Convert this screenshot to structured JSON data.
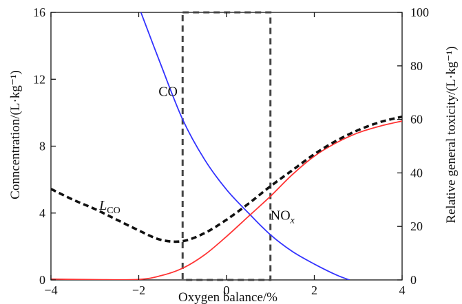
{
  "chart_data": {
    "type": "line",
    "title": "",
    "xlabel": "Oxygen balance/%",
    "ylabel_left": "Conncentration/(L·kg⁻¹)",
    "ylabel_right": "Relative general toxicity/(L·kg⁻¹)",
    "xlim": [
      -4,
      4
    ],
    "ylim_left": [
      0,
      16
    ],
    "ylim_right": [
      0,
      100
    ],
    "xticks": [
      -4,
      -2,
      0,
      2,
      4
    ],
    "xtick_labels": [
      "−4",
      "−2",
      "0",
      "2",
      "4"
    ],
    "yticks_left": [
      0,
      4,
      8,
      12,
      16
    ],
    "yticks_left_labels": [
      "0",
      "4",
      "8",
      "12",
      "16"
    ],
    "yticks_right": [
      0,
      20,
      40,
      60,
      80,
      100
    ],
    "yticks_right_labels": [
      "0",
      "20",
      "40",
      "60",
      "80",
      "100"
    ],
    "grid": false,
    "series": [
      {
        "name": "CO",
        "axis": "left",
        "color": "#3333ff",
        "style": "solid",
        "x": [
          -1.95,
          -1.5,
          -1.0,
          -0.5,
          0.0,
          0.5,
          1.0,
          1.5,
          2.0,
          2.5,
          2.8
        ],
        "values": [
          16.0,
          12.9,
          9.6,
          7.2,
          5.4,
          4.0,
          2.7,
          1.7,
          0.95,
          0.3,
          0.0
        ]
      },
      {
        "name": "NOx",
        "axis": "left",
        "color": "#ff3333",
        "style": "solid",
        "x": [
          -4.0,
          -3.0,
          -2.0,
          -1.5,
          -1.0,
          -0.5,
          0.0,
          0.5,
          1.0,
          1.5,
          2.0,
          2.5,
          3.0,
          3.5,
          4.0
        ],
        "values": [
          0.05,
          0.02,
          0.03,
          0.25,
          0.7,
          1.5,
          2.6,
          3.8,
          5.0,
          6.3,
          7.4,
          8.2,
          8.8,
          9.2,
          9.5
        ]
      },
      {
        "name": "LCO",
        "axis": "right",
        "color": "#111111",
        "style": "dashed",
        "x": [
          -4.0,
          -3.5,
          -3.0,
          -2.5,
          -2.0,
          -1.5,
          -1.0,
          -0.5,
          0.0,
          0.5,
          1.0,
          1.5,
          2.0,
          2.5,
          3.0,
          3.5,
          4.0
        ],
        "values": [
          34,
          30,
          26.5,
          22.5,
          18.5,
          15,
          14.5,
          17.5,
          22.5,
          28.5,
          35,
          41,
          47,
          52,
          56,
          59,
          61
        ]
      }
    ],
    "annotations": [
      {
        "text_main": "CO",
        "text_sub": "",
        "x": -1.55,
        "y": 11.0
      },
      {
        "text_main": "NO",
        "text_sub": "x",
        "x": 1.0,
        "y": 3.6
      },
      {
        "text_main": "L",
        "text_sub": "CO",
        "x": -2.9,
        "y": 4.2
      }
    ],
    "region_box": {
      "x": [
        -1.0,
        1.0
      ],
      "y": [
        0,
        16
      ],
      "color": "#444444",
      "style": "dashed"
    }
  }
}
